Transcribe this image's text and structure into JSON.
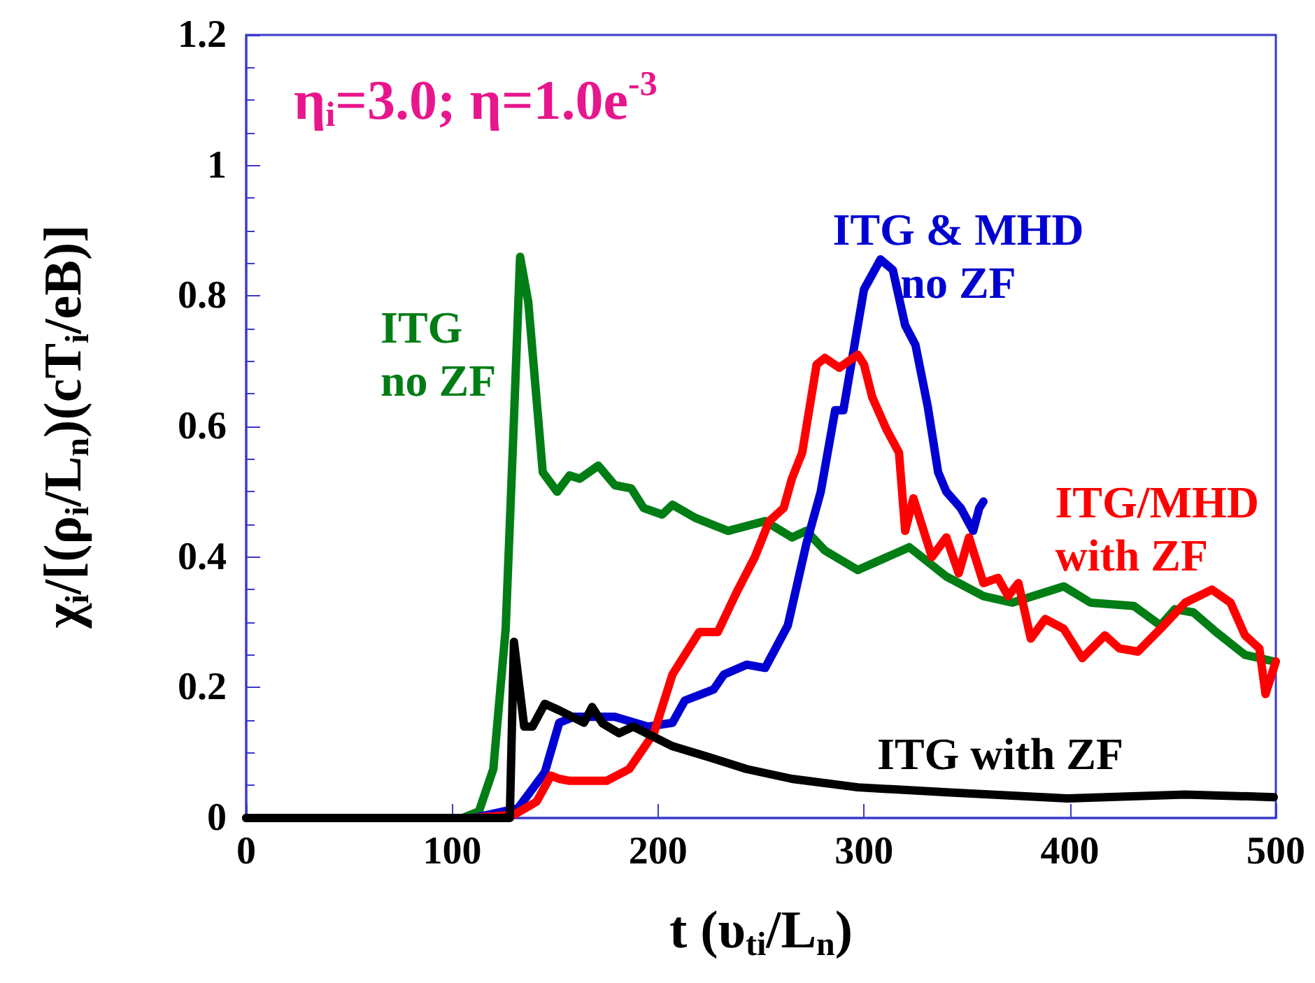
{
  "chart_data": {
    "type": "line",
    "xlabel": "t (υ$_{ti}$/L$_{n}$)",
    "ylabel": "χ$_{i}$/[(ρ$_{i}$/L$_{n}$)(cT$_{i}$/eB)]",
    "annotations": [
      "η$_{i}$=3.0; η=1.0e$^{-3}$"
    ],
    "xlim": [
      0,
      500
    ],
    "xticks": [
      0,
      100,
      200,
      300,
      400,
      500
    ],
    "ylim": [
      0,
      1.2
    ],
    "yticks": [
      0,
      0.2,
      0.4,
      0.6,
      0.8,
      1,
      1.2
    ],
    "grid": false,
    "legend": false,
    "marker": "none",
    "line_style": "solid",
    "series": [
      {
        "name": "ITG\nno ZF",
        "color": "#007d14",
        "x": [
          0,
          105,
          113,
          120,
          126,
          130,
          133,
          137,
          144,
          151,
          157,
          162,
          171,
          179,
          187,
          193,
          202,
          207,
          218,
          234,
          252,
          265,
          272,
          281,
          297,
          322,
          340,
          358,
          372,
          397,
          410,
          431,
          444,
          451,
          460,
          471,
          485,
          499
        ],
        "values": [
          0,
          0,
          0.01,
          0.075,
          0.29,
          0.61,
          0.86,
          0.79,
          0.53,
          0.5,
          0.525,
          0.52,
          0.54,
          0.51,
          0.505,
          0.475,
          0.465,
          0.48,
          0.46,
          0.44,
          0.455,
          0.43,
          0.44,
          0.41,
          0.38,
          0.415,
          0.37,
          0.34,
          0.33,
          0.355,
          0.33,
          0.325,
          0.295,
          0.32,
          0.315,
          0.285,
          0.25,
          0.24
        ]
      },
      {
        "name": "ITG & MHD\nno ZF",
        "color": "#0000d2",
        "x": [
          0,
          110,
          132,
          145,
          152,
          159,
          179,
          195,
          207,
          213,
          227,
          232,
          243,
          252,
          263,
          272,
          279,
          286,
          290,
          300,
          308,
          314,
          320,
          325,
          331,
          336,
          340,
          347,
          353,
          356,
          358
        ],
        "values": [
          0,
          0,
          0.015,
          0.07,
          0.146,
          0.155,
          0.155,
          0.14,
          0.146,
          0.18,
          0.197,
          0.22,
          0.235,
          0.23,
          0.295,
          0.42,
          0.5,
          0.625,
          0.625,
          0.81,
          0.856,
          0.84,
          0.755,
          0.725,
          0.63,
          0.53,
          0.5,
          0.475,
          0.44,
          0.475,
          0.485
        ]
      },
      {
        "name": "ITG/MHD\nwith ZF",
        "color": "#ff0000",
        "x": [
          0,
          110,
          130,
          141,
          148,
          152,
          157,
          175,
          186,
          198,
          207,
          220,
          229,
          238,
          247,
          254,
          261,
          265,
          270,
          277,
          281,
          288,
          297,
          300,
          304,
          311,
          317,
          320,
          324,
          333,
          340,
          346,
          351,
          358,
          365,
          370,
          375,
          381,
          388,
          397,
          406,
          417,
          424,
          433,
          444,
          456,
          469,
          478,
          485,
          492,
          495,
          500
        ],
        "values": [
          0,
          0,
          0.005,
          0.025,
          0.065,
          0.06,
          0.057,
          0.057,
          0.075,
          0.13,
          0.22,
          0.285,
          0.285,
          0.345,
          0.4,
          0.455,
          0.475,
          0.52,
          0.56,
          0.695,
          0.705,
          0.69,
          0.71,
          0.695,
          0.645,
          0.595,
          0.56,
          0.44,
          0.49,
          0.4,
          0.43,
          0.375,
          0.43,
          0.36,
          0.368,
          0.34,
          0.36,
          0.275,
          0.305,
          0.29,
          0.245,
          0.28,
          0.26,
          0.255,
          0.29,
          0.33,
          0.35,
          0.33,
          0.28,
          0.26,
          0.19,
          0.24
        ]
      },
      {
        "name": "ITG with ZF",
        "color": "#000000",
        "x": [
          0,
          128,
          130,
          135,
          139,
          145,
          152,
          164,
          168,
          173,
          181,
          188,
          207,
          225,
          243,
          265,
          297,
          342,
          399,
          456,
          499
        ],
        "values": [
          0,
          0,
          0.27,
          0.14,
          0.14,
          0.175,
          0.165,
          0.146,
          0.17,
          0.145,
          0.13,
          0.14,
          0.11,
          0.093,
          0.075,
          0.06,
          0.047,
          0.039,
          0.03,
          0.036,
          0.032
        ]
      }
    ]
  }
}
